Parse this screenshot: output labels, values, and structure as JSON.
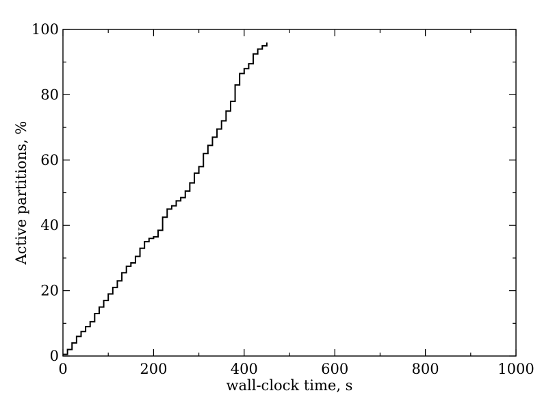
{
  "chart_data": {
    "type": "line",
    "xlabel": "wall-clock time, s",
    "ylabel": "Active partitions, %",
    "xlim": [
      0,
      1000
    ],
    "ylim": [
      0,
      100
    ],
    "xticks": [
      0,
      200,
      400,
      600,
      800,
      1000
    ],
    "yticks": [
      0,
      20,
      40,
      60,
      80,
      100
    ],
    "xtick_labels": [
      "0",
      "200",
      "400",
      "600",
      "800",
      "1000"
    ],
    "ytick_labels": [
      "0",
      "20",
      "40",
      "60",
      "80",
      "100"
    ],
    "x_minor_step": 100,
    "y_minor_step": 10,
    "grid": false,
    "line_color": "#000000",
    "series": [
      {
        "x": [
          0,
          10,
          20,
          30,
          40,
          50,
          60,
          70,
          80,
          90,
          100,
          110,
          120,
          130,
          140,
          150,
          160,
          170,
          180,
          190,
          200,
          210,
          220,
          230,
          240,
          250,
          260,
          270,
          280,
          290,
          300,
          310,
          320,
          330,
          340,
          350,
          360,
          370,
          380,
          390,
          400,
          410,
          420,
          430,
          440,
          450
        ],
        "y": [
          0.5,
          2,
          4,
          6,
          7.5,
          9,
          10.5,
          13,
          15,
          17,
          19,
          21,
          23,
          25.5,
          27.5,
          28.5,
          30.5,
          33,
          35,
          36,
          36.5,
          38.5,
          42.5,
          45,
          46,
          47.5,
          48.5,
          50.5,
          53,
          56,
          58,
          62,
          64.5,
          67,
          69.5,
          72,
          75,
          78,
          83,
          86.5,
          88,
          89.5,
          92.5,
          94,
          95,
          96
        ]
      }
    ]
  }
}
